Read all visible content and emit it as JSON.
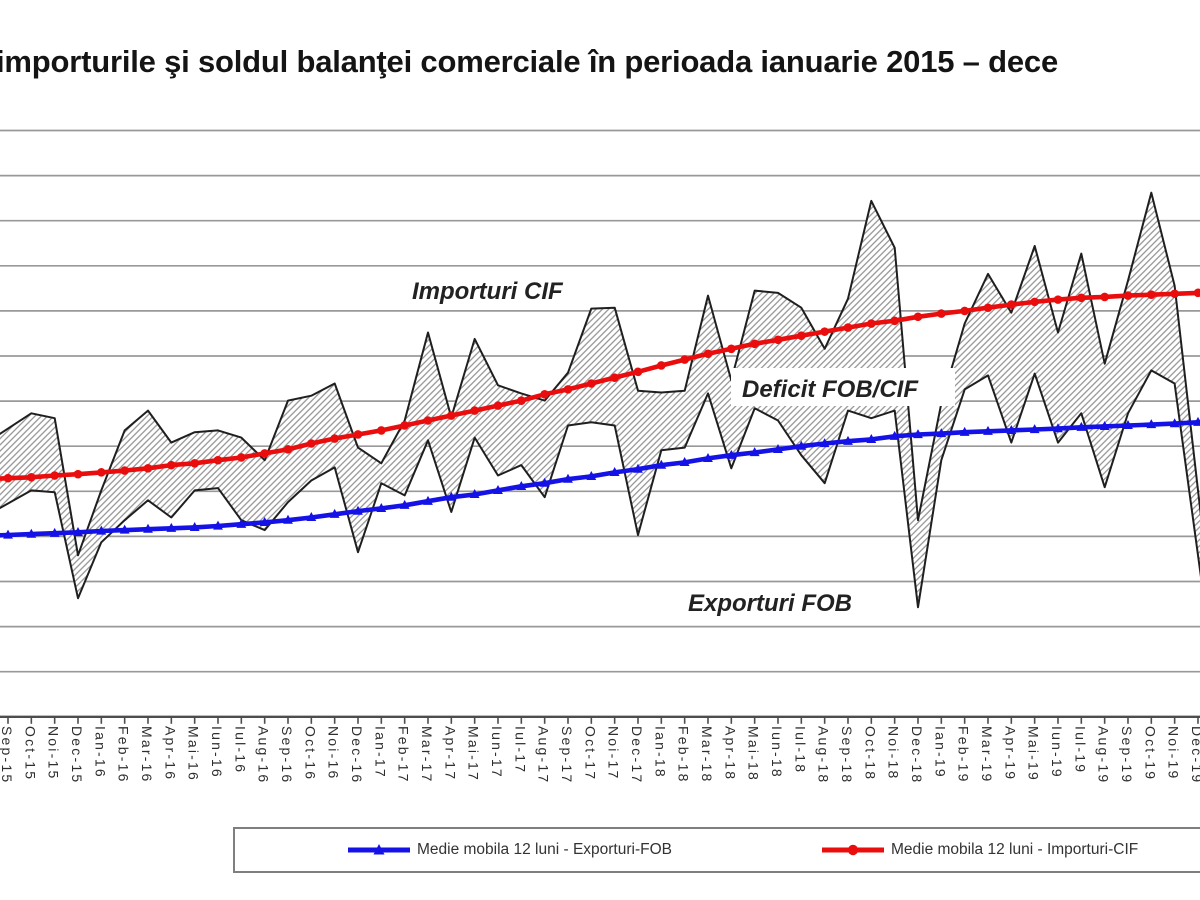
{
  "title": "importurile şi soldul balanţei comerciale în perioada ianuarie 2015 – dece",
  "annotations": {
    "imports_label": "Importuri CIF",
    "deficit_label": "Deficit FOB/CIF",
    "exports_label": "Exporturi FOB"
  },
  "legend": {
    "exports_ma_label": "Medie mobila 12 luni - Exporturi-FOB",
    "imports_ma_label": "Medie mobila 12 luni - Importuri-CIF"
  },
  "colors": {
    "imports_ma": "#ea0d0d",
    "exports_ma": "#1412e6",
    "band_outline": "#1f1f1f",
    "hatch": "#8a8a8a",
    "grid": "#999999",
    "axis": "#4d4d4d",
    "tick_text": "#2e2e2e",
    "annotation_text": "#222222"
  },
  "chart_data": {
    "type": "area",
    "title": "importurile şi soldul balanţei comerciale în perioada ianuarie 2015 – dece",
    "xlabel": "",
    "ylabel": "",
    "grid": true,
    "legend_position": "bottom",
    "ylim": [
      0,
      13
    ],
    "y_unit_note": "value axis cropped out of frame; values estimated in gridline units",
    "x": [
      "Sep-15",
      "Oct-15",
      "Noi-15",
      "Dec-15",
      "Ian-16",
      "Feb-16",
      "Mar-16",
      "Apr-16",
      "Mai-16",
      "Iun-16",
      "Iul-16",
      "Aug-16",
      "Sep-16",
      "Oct-16",
      "Noi-16",
      "Dec-16",
      "Ian-17",
      "Feb-17",
      "Mar-17",
      "Apr-17",
      "Mai-17",
      "Iun-17",
      "Iul-17",
      "Aug-17",
      "Sep-17",
      "Oct-17",
      "Noi-17",
      "Dec-17",
      "Ian-18",
      "Feb-18",
      "Mar-18",
      "Apr-18",
      "Mai-18",
      "Iun-18",
      "Iul-18",
      "Aug-18",
      "Sep-18",
      "Oct-18",
      "Noi-18",
      "Dec-18",
      "Ian-19",
      "Feb-19",
      "Mar-19",
      "Apr-19",
      "Mai-19",
      "Iun-19",
      "Iul-19",
      "Aug-19",
      "Sep-19",
      "Oct-19",
      "Noi-19",
      "Dec-19"
    ],
    "series": [
      {
        "name": "Importuri CIF (lunar)",
        "role": "band-top",
        "marker": "none",
        "values": [
          6.39,
          6.73,
          6.62,
          3.58,
          5.02,
          6.35,
          6.79,
          6.08,
          6.31,
          6.35,
          6.19,
          5.69,
          7.01,
          7.12,
          7.39,
          5.97,
          5.62,
          6.57,
          8.52,
          6.64,
          8.38,
          7.35,
          7.17,
          7.01,
          7.63,
          9.05,
          9.07,
          7.23,
          7.19,
          7.23,
          9.34,
          7.46,
          9.45,
          9.4,
          9.07,
          8.16,
          9.27,
          11.44,
          10.4,
          4.36,
          6.95,
          8.72,
          9.82,
          8.96,
          10.44,
          8.52,
          10.27,
          7.83,
          9.67,
          11.62,
          9.56,
          5.02
        ]
      },
      {
        "name": "Exporturi FOB (lunar)",
        "role": "band-bottom",
        "marker": "none",
        "values": [
          4.73,
          5.02,
          4.98,
          2.63,
          3.87,
          4.36,
          4.8,
          4.42,
          5.02,
          5.07,
          4.36,
          4.14,
          4.76,
          5.24,
          5.53,
          3.65,
          5.18,
          4.91,
          6.13,
          4.54,
          6.19,
          5.35,
          5.58,
          4.87,
          6.46,
          6.53,
          6.46,
          4.03,
          5.91,
          5.97,
          7.17,
          5.51,
          6.84,
          6.57,
          5.8,
          5.18,
          6.79,
          6.62,
          6.79,
          2.43,
          5.69,
          7.26,
          7.57,
          6.08,
          7.61,
          6.08,
          6.73,
          5.09,
          6.73,
          7.68,
          7.39,
          3.58
        ]
      },
      {
        "name": "Medie mobila 12 luni - Importuri-CIF",
        "role": "ma-line",
        "marker": "circle",
        "color": "#ea0d0d",
        "values": [
          5.29,
          5.31,
          5.35,
          5.38,
          5.42,
          5.46,
          5.51,
          5.58,
          5.62,
          5.69,
          5.75,
          5.84,
          5.93,
          6.06,
          6.17,
          6.26,
          6.35,
          6.46,
          6.57,
          6.68,
          6.79,
          6.9,
          7.01,
          7.15,
          7.26,
          7.39,
          7.52,
          7.65,
          7.79,
          7.92,
          8.05,
          8.16,
          8.27,
          8.36,
          8.45,
          8.54,
          8.63,
          8.72,
          8.78,
          8.87,
          8.94,
          9.0,
          9.07,
          9.14,
          9.2,
          9.25,
          9.29,
          9.31,
          9.34,
          9.36,
          9.38,
          9.4
        ]
      },
      {
        "name": "Medie mobila 12 luni - Exporturi-FOB",
        "role": "ma-line",
        "marker": "triangle",
        "color": "#1412e6",
        "values": [
          4.03,
          4.05,
          4.07,
          4.09,
          4.12,
          4.14,
          4.16,
          4.18,
          4.2,
          4.23,
          4.27,
          4.31,
          4.36,
          4.42,
          4.49,
          4.56,
          4.62,
          4.69,
          4.78,
          4.87,
          4.93,
          5.02,
          5.11,
          5.18,
          5.27,
          5.33,
          5.42,
          5.49,
          5.58,
          5.64,
          5.73,
          5.8,
          5.86,
          5.93,
          6.0,
          6.06,
          6.11,
          6.15,
          6.22,
          6.26,
          6.28,
          6.31,
          6.33,
          6.35,
          6.37,
          6.39,
          6.42,
          6.44,
          6.46,
          6.48,
          6.5,
          6.53
        ]
      }
    ],
    "annotations": [
      "Importuri CIF",
      "Deficit FOB/CIF",
      "Exporturi FOB"
    ]
  }
}
